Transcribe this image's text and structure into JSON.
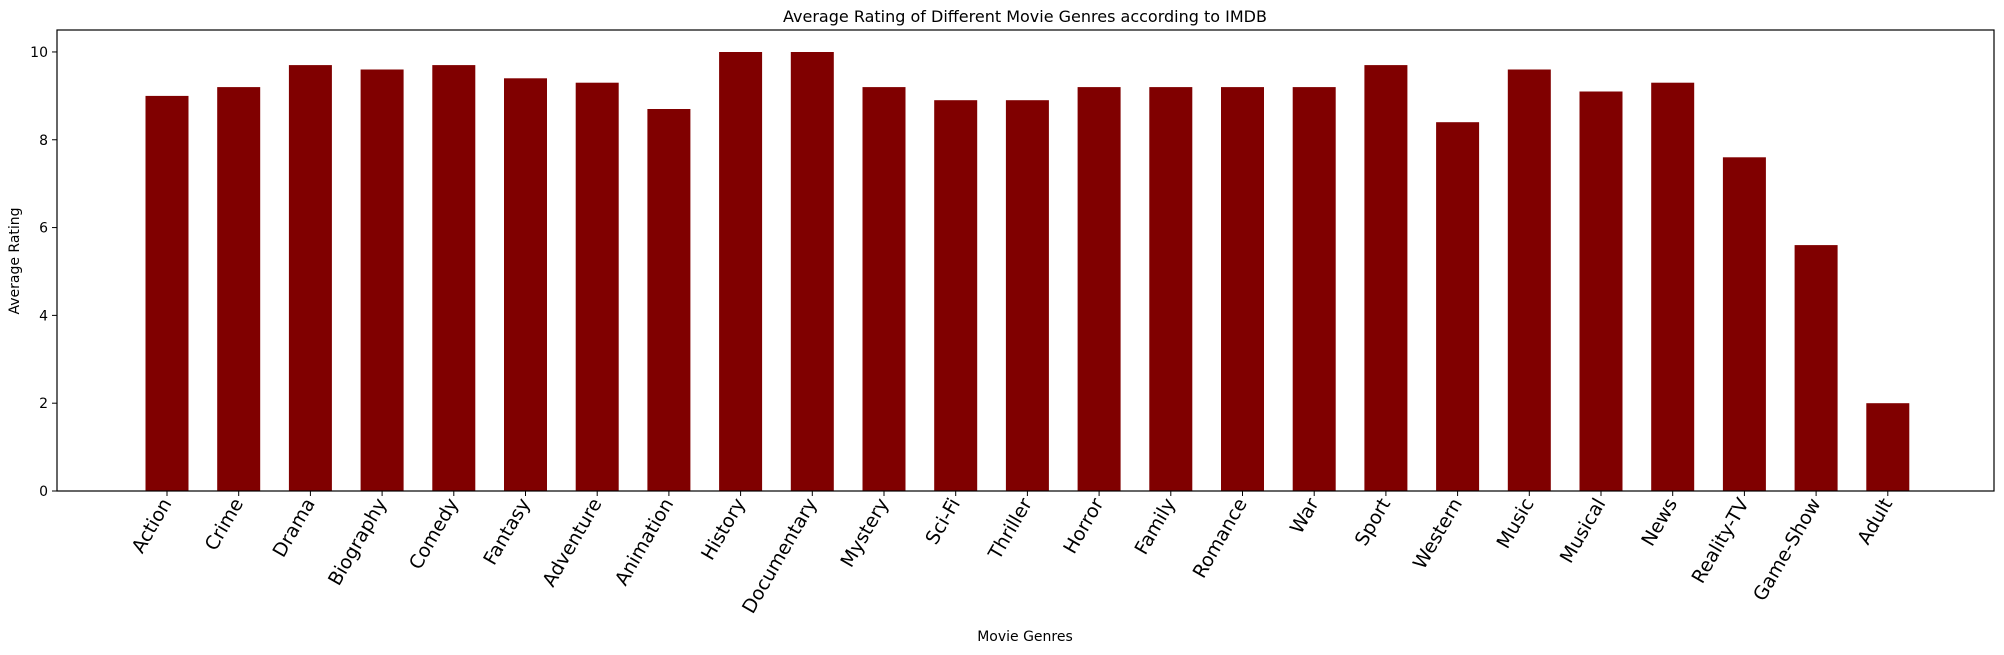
{
  "chart_data": {
    "type": "bar",
    "title": "Average Rating of Different Movie Genres according to IMDB",
    "xlabel": "Movie Genres",
    "ylabel": "Average Rating",
    "ylim": [
      0,
      10.5
    ],
    "yticks": [
      0,
      2,
      4,
      6,
      8,
      10
    ],
    "grid": false,
    "bar_color": "#800000",
    "categories": [
      "Action",
      "Crime",
      "Drama",
      "Biography",
      "Comedy",
      "Fantasy",
      "Adventure",
      "Animation",
      "History",
      "Documentary",
      "Mystery",
      "Sci-Fi",
      "Thriller",
      "Horror",
      "Family",
      "Romance",
      "War",
      "Sport",
      "Western",
      "Music",
      "Musical",
      "News",
      "Reality-TV",
      "Game-Show",
      "Adult"
    ],
    "values": [
      9.0,
      9.2,
      9.7,
      9.6,
      9.7,
      9.4,
      9.3,
      8.7,
      10.0,
      10.0,
      9.2,
      8.9,
      8.9,
      9.2,
      9.2,
      9.2,
      9.2,
      9.7,
      8.4,
      9.6,
      9.1,
      9.3,
      7.6,
      5.6,
      2.0
    ]
  }
}
